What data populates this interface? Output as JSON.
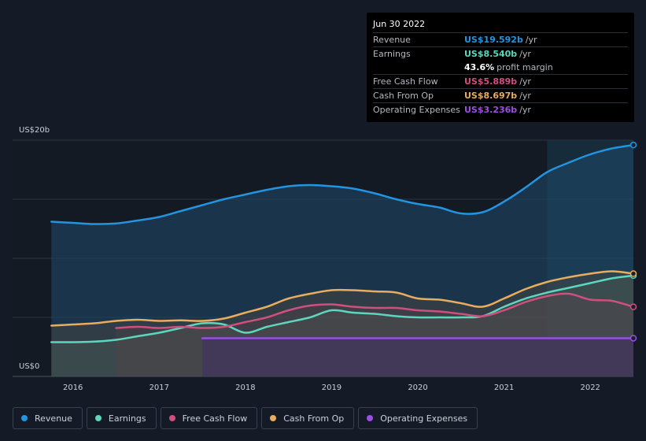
{
  "chart_data": {
    "type": "area",
    "xlabel": "",
    "ylabel": "",
    "y_axis_labels": [
      "US$20b",
      "US$0"
    ],
    "ylim": [
      0,
      20
    ],
    "x_ticks": [
      "2016",
      "2017",
      "2018",
      "2019",
      "2020",
      "2021",
      "2022"
    ],
    "x_tick_years": [
      2016,
      2017,
      2018,
      2019,
      2020,
      2021,
      2022
    ],
    "x_range": [
      2015.3,
      2022.5
    ],
    "highlight_start": 2021.5,
    "series": [
      {
        "name": "Revenue",
        "color": "#2394df",
        "x": [
          2015.75,
          2016.0,
          2016.25,
          2016.5,
          2016.75,
          2017.0,
          2017.25,
          2017.5,
          2017.75,
          2018.0,
          2018.25,
          2018.5,
          2018.75,
          2019.0,
          2019.25,
          2019.5,
          2019.75,
          2020.0,
          2020.25,
          2020.5,
          2020.75,
          2021.0,
          2021.25,
          2021.5,
          2021.75,
          2022.0,
          2022.25,
          2022.5
        ],
        "values": [
          13.1,
          13.0,
          12.9,
          12.95,
          13.2,
          13.5,
          14.0,
          14.5,
          15.0,
          15.4,
          15.8,
          16.1,
          16.2,
          16.1,
          15.9,
          15.5,
          15.0,
          14.6,
          14.3,
          13.8,
          13.9,
          14.8,
          16.0,
          17.3,
          18.1,
          18.8,
          19.3,
          19.59
        ]
      },
      {
        "name": "Earnings",
        "color": "#5ed6bd",
        "x": [
          2015.75,
          2016.0,
          2016.25,
          2016.5,
          2016.75,
          2017.0,
          2017.25,
          2017.5,
          2017.75,
          2018.0,
          2018.25,
          2018.5,
          2018.75,
          2019.0,
          2019.25,
          2019.5,
          2019.75,
          2020.0,
          2020.25,
          2020.5,
          2020.75,
          2021.0,
          2021.25,
          2021.5,
          2021.75,
          2022.0,
          2022.25,
          2022.5
        ],
        "values": [
          2.9,
          2.9,
          2.95,
          3.1,
          3.4,
          3.7,
          4.1,
          4.5,
          4.4,
          3.7,
          4.2,
          4.6,
          5.0,
          5.6,
          5.4,
          5.3,
          5.1,
          5.0,
          5.0,
          5.0,
          5.1,
          5.9,
          6.6,
          7.1,
          7.5,
          7.9,
          8.3,
          8.54
        ]
      },
      {
        "name": "Free Cash Flow",
        "color": "#cf4f7f",
        "x": [
          2016.5,
          2016.75,
          2017.0,
          2017.25,
          2017.5,
          2017.75,
          2018.0,
          2018.25,
          2018.5,
          2018.75,
          2019.0,
          2019.25,
          2019.5,
          2019.75,
          2020.0,
          2020.25,
          2020.5,
          2020.75,
          2021.0,
          2021.25,
          2021.5,
          2021.75,
          2022.0,
          2022.25,
          2022.5
        ],
        "values": [
          4.1,
          4.2,
          4.1,
          4.2,
          4.1,
          4.2,
          4.6,
          5.0,
          5.6,
          6.0,
          6.1,
          5.9,
          5.8,
          5.8,
          5.6,
          5.5,
          5.3,
          5.1,
          5.6,
          6.3,
          6.8,
          7.0,
          6.5,
          6.4,
          5.89
        ]
      },
      {
        "name": "Cash From Op",
        "color": "#e8ad5e",
        "x": [
          2015.75,
          2016.0,
          2016.25,
          2016.5,
          2016.75,
          2017.0,
          2017.25,
          2017.5,
          2017.75,
          2018.0,
          2018.25,
          2018.5,
          2018.75,
          2019.0,
          2019.25,
          2019.5,
          2019.75,
          2020.0,
          2020.25,
          2020.5,
          2020.75,
          2021.0,
          2021.25,
          2021.5,
          2021.75,
          2022.0,
          2022.25,
          2022.5
        ],
        "values": [
          4.3,
          4.4,
          4.5,
          4.7,
          4.8,
          4.7,
          4.75,
          4.7,
          4.9,
          5.4,
          5.9,
          6.6,
          7.0,
          7.3,
          7.3,
          7.2,
          7.1,
          6.6,
          6.5,
          6.2,
          5.9,
          6.6,
          7.4,
          8.0,
          8.4,
          8.7,
          8.9,
          8.697
        ]
      },
      {
        "name": "Operating Expenses",
        "color": "#9b4ee3",
        "x": [
          2017.5,
          2017.75,
          2018.0,
          2018.5,
          2019.0,
          2019.5,
          2020.0,
          2020.5,
          2021.0,
          2021.5,
          2022.0,
          2022.5
        ],
        "values": [
          3.236,
          3.236,
          3.236,
          3.236,
          3.236,
          3.236,
          3.236,
          3.236,
          3.236,
          3.236,
          3.236,
          3.236
        ]
      }
    ]
  },
  "tooltip": {
    "date": "Jun 30 2022",
    "rows": [
      {
        "label": "Revenue",
        "value": "US$19.592b",
        "unit": "/yr",
        "color": "#2394df"
      },
      {
        "label": "Earnings",
        "value": "US$8.540b",
        "unit": "/yr",
        "color": "#5ed6bd"
      },
      {
        "label": "Free Cash Flow",
        "value": "US$5.889b",
        "unit": "/yr",
        "color": "#cf4f7f"
      },
      {
        "label": "Cash From Op",
        "value": "US$8.697b",
        "unit": "/yr",
        "color": "#e8ad5e"
      },
      {
        "label": "Operating Expenses",
        "value": "US$3.236b",
        "unit": "/yr",
        "color": "#9b4ee3"
      }
    ],
    "margin_value": "43.6%",
    "margin_label": "profit margin"
  },
  "legend": [
    {
      "label": "Revenue",
      "color": "#2394df"
    },
    {
      "label": "Earnings",
      "color": "#5ed6bd"
    },
    {
      "label": "Free Cash Flow",
      "color": "#cf4f7f"
    },
    {
      "label": "Cash From Op",
      "color": "#e8ad5e"
    },
    {
      "label": "Operating Expenses",
      "color": "#9b4ee3"
    }
  ]
}
